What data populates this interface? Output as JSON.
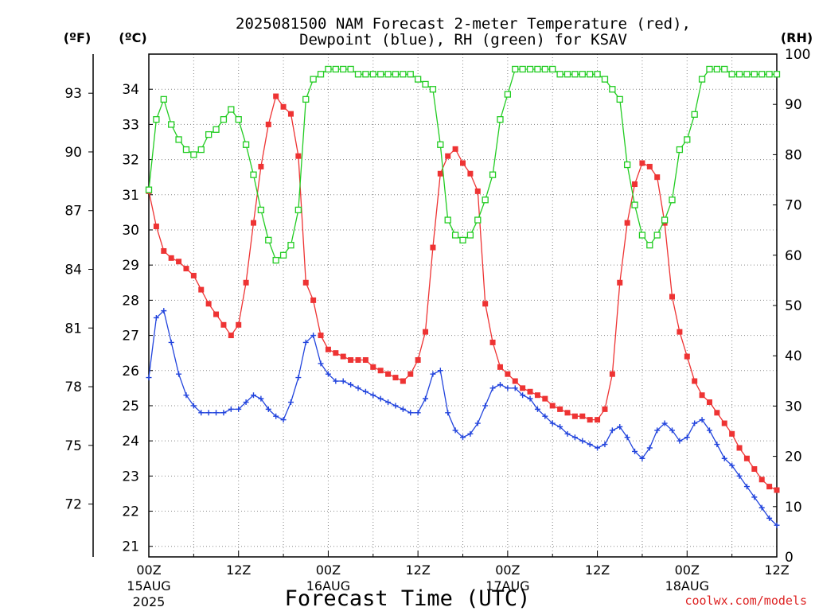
{
  "chart_data": {
    "type": "line",
    "title_line1": "2025081500 NAM Forecast 2-meter Temperature (red),",
    "title_line2": "Dewpoint (blue), RH (green) for KSAV",
    "xlabel": "Forecast Time (UTC)",
    "credit": "coolwx.com/models",
    "axis_unit_f": "(ºF)",
    "axis_unit_c": "(ºC)",
    "axis_unit_rh": "(RH)",
    "x_unit": "hours from 2025-08-15 00Z",
    "xlim": [
      0,
      84
    ],
    "ylim_c": [
      20.7,
      35.0
    ],
    "ylim_rh": [
      0,
      100
    ],
    "ylim_f": [
      69.3,
      95.0
    ],
    "yticks_c": [
      21,
      22,
      23,
      24,
      25,
      26,
      27,
      28,
      29,
      30,
      31,
      32,
      33,
      34
    ],
    "yticks_f": [
      72,
      75,
      78,
      81,
      84,
      87,
      90,
      93
    ],
    "yticks_rh": [
      0,
      10,
      20,
      30,
      40,
      50,
      60,
      70,
      80,
      90,
      100
    ],
    "xticks": [
      {
        "x": 0,
        "hour": "00Z",
        "date": "15AUG",
        "year": "2025"
      },
      {
        "x": 12,
        "hour": "12Z",
        "date": "",
        "year": ""
      },
      {
        "x": 24,
        "hour": "00Z",
        "date": "16AUG",
        "year": ""
      },
      {
        "x": 36,
        "hour": "12Z",
        "date": "",
        "year": ""
      },
      {
        "x": 48,
        "hour": "00Z",
        "date": "17AUG",
        "year": ""
      },
      {
        "x": 60,
        "hour": "12Z",
        "date": "",
        "year": ""
      },
      {
        "x": 72,
        "hour": "00Z",
        "date": "18AUG",
        "year": ""
      },
      {
        "x": 84,
        "hour": "12Z",
        "date": "",
        "year": ""
      }
    ],
    "grid": true,
    "colors": {
      "temperature": "#ee3333",
      "dewpoint": "#2244dd",
      "rh": "#22cc22"
    },
    "series": [
      {
        "axis": "c",
        "marker": "square-filled",
        "x": [
          0,
          1,
          2,
          3,
          4,
          5,
          6,
          7,
          8,
          9,
          10,
          11,
          12,
          13,
          14,
          15,
          16,
          17,
          18,
          19,
          20,
          21,
          22,
          23,
          24,
          25,
          26,
          27,
          28,
          29,
          30,
          31,
          32,
          33,
          34,
          35,
          36,
          37,
          38,
          39,
          40,
          41,
          42,
          43,
          44,
          45,
          46,
          47,
          48,
          49,
          50,
          51,
          52,
          53,
          54,
          55,
          56,
          57,
          58,
          59,
          60,
          61,
          62,
          63,
          64,
          65,
          66,
          67,
          68,
          69,
          70,
          71,
          72,
          73,
          74,
          75,
          76,
          77,
          78,
          79,
          80,
          81,
          82,
          83,
          84
        ],
        "values": [
          31.1,
          30.1,
          29.4,
          29.2,
          29.1,
          28.9,
          28.7,
          28.3,
          27.9,
          27.6,
          27.3,
          27.0,
          27.3,
          28.5,
          30.2,
          31.8,
          33.0,
          33.8,
          33.5,
          33.3,
          32.1,
          28.5,
          28.0,
          27.0,
          26.6,
          26.5,
          26.4,
          26.3,
          26.3,
          26.3,
          26.1,
          26.0,
          25.9,
          25.8,
          25.7,
          25.9,
          26.3,
          27.1,
          29.5,
          31.6,
          32.1,
          32.3,
          31.9,
          31.6,
          31.1,
          27.9,
          26.8,
          26.1,
          25.9,
          25.7,
          25.5,
          25.4,
          25.3,
          25.2,
          25.0,
          24.9,
          24.8,
          24.7,
          24.7,
          24.6,
          24.6,
          24.9,
          25.9,
          28.5,
          30.2,
          31.3,
          31.9,
          31.8,
          31.5,
          30.2,
          28.1,
          27.1,
          26.4,
          25.7,
          25.3,
          25.1,
          24.8,
          24.5,
          24.2,
          23.8,
          23.5,
          23.2,
          22.9,
          22.7,
          22.6
        ]
      },
      {
        "axis": "c",
        "marker": "plus",
        "x": [
          0,
          1,
          2,
          3,
          4,
          5,
          6,
          7,
          8,
          9,
          10,
          11,
          12,
          13,
          14,
          15,
          16,
          17,
          18,
          19,
          20,
          21,
          22,
          23,
          24,
          25,
          26,
          27,
          28,
          29,
          30,
          31,
          32,
          33,
          34,
          35,
          36,
          37,
          38,
          39,
          40,
          41,
          42,
          43,
          44,
          45,
          46,
          47,
          48,
          49,
          50,
          51,
          52,
          53,
          54,
          55,
          56,
          57,
          58,
          59,
          60,
          61,
          62,
          63,
          64,
          65,
          66,
          67,
          68,
          69,
          70,
          71,
          72,
          73,
          74,
          75,
          76,
          77,
          78,
          79,
          80,
          81,
          82,
          83,
          84
        ],
        "values": [
          25.8,
          27.5,
          27.7,
          26.8,
          25.9,
          25.3,
          25.0,
          24.8,
          24.8,
          24.8,
          24.8,
          24.9,
          24.9,
          25.1,
          25.3,
          25.2,
          24.9,
          24.7,
          24.6,
          25.1,
          25.8,
          26.8,
          27.0,
          26.2,
          25.9,
          25.7,
          25.7,
          25.6,
          25.5,
          25.4,
          25.3,
          25.2,
          25.1,
          25.0,
          24.9,
          24.8,
          24.8,
          25.2,
          25.9,
          26.0,
          24.8,
          24.3,
          24.1,
          24.2,
          24.5,
          25.0,
          25.5,
          25.6,
          25.5,
          25.5,
          25.3,
          25.2,
          24.9,
          24.7,
          24.5,
          24.4,
          24.2,
          24.1,
          24.0,
          23.9,
          23.8,
          23.9,
          24.3,
          24.4,
          24.1,
          23.7,
          23.5,
          23.8,
          24.3,
          24.5,
          24.3,
          24.0,
          24.1,
          24.5,
          24.6,
          24.3,
          23.9,
          23.5,
          23.3,
          23.0,
          22.7,
          22.4,
          22.1,
          21.8,
          21.6
        ]
      },
      {
        "axis": "rh",
        "marker": "square-open",
        "x": [
          0,
          1,
          2,
          3,
          4,
          5,
          6,
          7,
          8,
          9,
          10,
          11,
          12,
          13,
          14,
          15,
          16,
          17,
          18,
          19,
          20,
          21,
          22,
          23,
          24,
          25,
          26,
          27,
          28,
          29,
          30,
          31,
          32,
          33,
          34,
          35,
          36,
          37,
          38,
          39,
          40,
          41,
          42,
          43,
          44,
          45,
          46,
          47,
          48,
          49,
          50,
          51,
          52,
          53,
          54,
          55,
          56,
          57,
          58,
          59,
          60,
          61,
          62,
          63,
          64,
          65,
          66,
          67,
          68,
          69,
          70,
          71,
          72,
          73,
          74,
          75,
          76,
          77,
          78,
          79,
          80,
          81,
          82,
          83,
          84
        ],
        "values": [
          73,
          87,
          91,
          86,
          83,
          81,
          80,
          81,
          84,
          85,
          87,
          89,
          87,
          82,
          76,
          69,
          63,
          59,
          60,
          62,
          69,
          91,
          95,
          96,
          97,
          97,
          97,
          97,
          96,
          96,
          96,
          96,
          96,
          96,
          96,
          96,
          95,
          94,
          93,
          82,
          67,
          64,
          63,
          64,
          67,
          71,
          76,
          87,
          92,
          97,
          97,
          97,
          97,
          97,
          97,
          96,
          96,
          96,
          96,
          96,
          96,
          95,
          93,
          91,
          78,
          70,
          64,
          62,
          64,
          67,
          71,
          81,
          83,
          88,
          95,
          97,
          97,
          97,
          96,
          96,
          96,
          96,
          96,
          96,
          96
        ]
      }
    ]
  }
}
